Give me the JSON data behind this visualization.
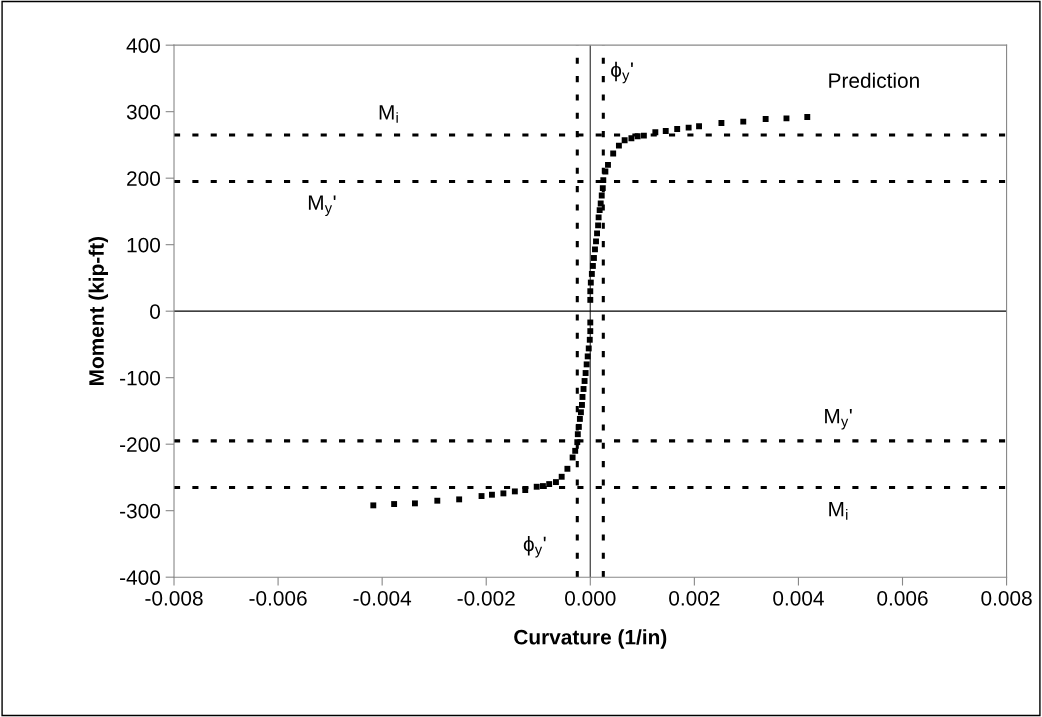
{
  "chart_data": {
    "type": "scatter",
    "xlabel": "Curvature (1/in)",
    "ylabel": "Moment (kip-ft)",
    "xlim": [
      -0.008,
      0.008
    ],
    "ylim": [
      -400,
      400
    ],
    "xticks": [
      {
        "value": -0.008,
        "label": "-0.008"
      },
      {
        "value": -0.006,
        "label": "-0.006"
      },
      {
        "value": -0.004,
        "label": "-0.004"
      },
      {
        "value": -0.002,
        "label": "-0.002"
      },
      {
        "value": 0,
        "label": "0.000"
      },
      {
        "value": 0.002,
        "label": "0.002"
      },
      {
        "value": 0.004,
        "label": "0.004"
      },
      {
        "value": 0.006,
        "label": "0.006"
      },
      {
        "value": 0.008,
        "label": "0.008"
      }
    ],
    "yticks": [
      -400,
      -300,
      -200,
      -100,
      0,
      100,
      200,
      300,
      400
    ],
    "grid": false,
    "legend": false,
    "marker": "square",
    "series": [
      {
        "color": "#000000",
        "x": [
          0.00417,
          0.00377,
          0.00337,
          0.00294,
          0.00252,
          0.00209,
          0.00189,
          0.00167,
          0.00145,
          0.00125,
          0.00103,
          0.00091,
          0.00079,
          0.00066,
          0.00055,
          0.00044,
          0.00034,
          0.00029,
          0.00025,
          0.00024,
          0.00022,
          0.0002,
          0.00018,
          0.00016,
          0.00015,
          0.00013,
          0.00011,
          9e-05,
          7e-05,
          5e-05,
          3e-05,
          1e-05,
          0.0,
          0.0,
          0.0,
          0.0,
          -1e-05,
          -3e-05,
          -5e-05,
          -7e-05,
          -9e-05,
          -0.00011,
          -0.00013,
          -0.00015,
          -0.00016,
          -0.00018,
          -0.0002,
          -0.00022,
          -0.00024,
          -0.00025,
          -0.00029,
          -0.00034,
          -0.00044,
          -0.00055,
          -0.00066,
          -0.00079,
          -0.00091,
          -0.00103,
          -0.00125,
          -0.00145,
          -0.00167,
          -0.00189,
          -0.00209,
          -0.00252,
          -0.00294,
          -0.00337,
          -0.00377,
          -0.00417
        ],
        "values": [
          292,
          290,
          289,
          285,
          283,
          278,
          276,
          274,
          271,
          269,
          264,
          263,
          260,
          257,
          249,
          237,
          220,
          210,
          197,
          185,
          174,
          162,
          152,
          141,
          129,
          117,
          105,
          93,
          80,
          68,
          56,
          43,
          30,
          17,
          -17,
          -30,
          -43,
          -56,
          -68,
          -80,
          -93,
          -105,
          -117,
          -129,
          -141,
          -152,
          -162,
          -174,
          -185,
          -197,
          -210,
          -220,
          -237,
          -249,
          -257,
          -260,
          -263,
          -264,
          -269,
          -271,
          -274,
          -276,
          -278,
          -283,
          -285,
          -289,
          -290,
          -292
        ]
      }
    ],
    "ref_lines": [
      {
        "axis": "y",
        "value": 265,
        "color": "#000000",
        "line_style": "dotted",
        "label": "M$_{i}$"
      },
      {
        "axis": "y",
        "value": 195,
        "color": "#000000",
        "line_style": "dotted",
        "label": "M$_{y}$'"
      },
      {
        "axis": "y",
        "value": -195,
        "color": "#000000",
        "line_style": "dotted",
        "label": "M$_{y}$'"
      },
      {
        "axis": "y",
        "value": -265,
        "color": "#000000",
        "line_style": "dotted",
        "label": "M$_{i}$"
      },
      {
        "axis": "x",
        "value": -0.00025,
        "color": "#000000",
        "line_style": "dotted",
        "label": "ϕ$_{y}$'"
      },
      {
        "axis": "x",
        "value": 0.00025,
        "color": "#000000",
        "line_style": "dotted",
        "label": "ϕ$_{y}$'"
      },
      {
        "axis": "x",
        "value": 0,
        "color": "#555555",
        "line_style": "solid"
      },
      {
        "axis": "y",
        "value": 0,
        "color": "#000000",
        "line_style": "solid"
      }
    ],
    "annotations": [
      "Prediction"
    ]
  }
}
